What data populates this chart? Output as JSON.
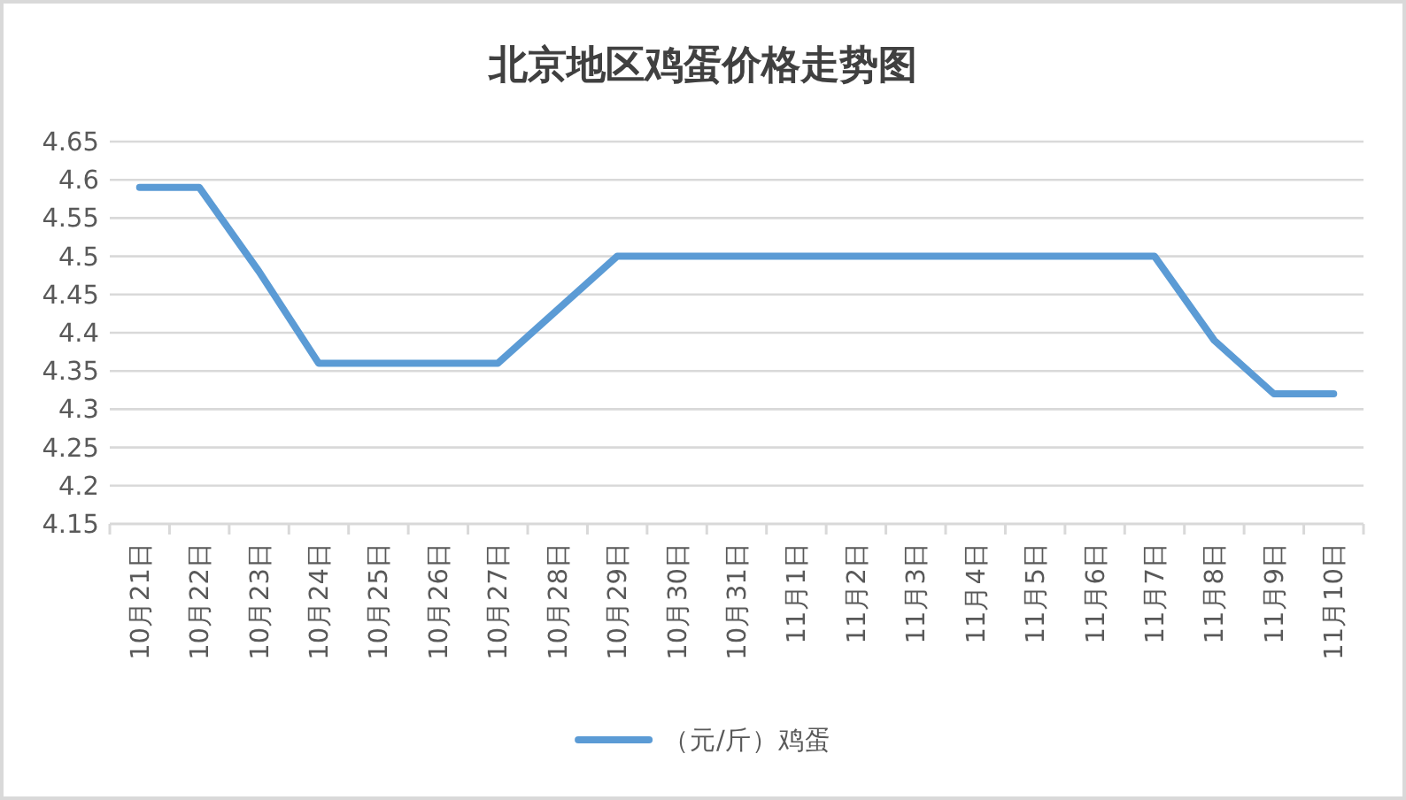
{
  "chart_data": {
    "type": "line",
    "title": "北京地区鸡蛋价格走势图",
    "categories": [
      "10月21日",
      "10月22日",
      "10月23日",
      "10月24日",
      "10月25日",
      "10月26日",
      "10月27日",
      "10月28日",
      "10月29日",
      "10月30日",
      "10月31日",
      "11月1日",
      "11月2日",
      "11月3日",
      "11月4日",
      "11月5日",
      "11月6日",
      "11月7日",
      "11月8日",
      "11月9日",
      "11月10日"
    ],
    "series": [
      {
        "name": "（元/斤）鸡蛋",
        "color": "#5b9bd5",
        "values": [
          4.59,
          4.59,
          4.48,
          4.36,
          4.36,
          4.36,
          4.36,
          4.43,
          4.5,
          4.5,
          4.5,
          4.5,
          4.5,
          4.5,
          4.5,
          4.5,
          4.5,
          4.5,
          4.39,
          4.32,
          4.32
        ]
      }
    ],
    "ylim": [
      4.15,
      4.65
    ],
    "yticks": [
      4.15,
      4.2,
      4.25,
      4.3,
      4.35,
      4.4,
      4.45,
      4.5,
      4.55,
      4.6,
      4.65
    ],
    "grid": "y",
    "legend": "bottom",
    "line_style": "solid"
  }
}
